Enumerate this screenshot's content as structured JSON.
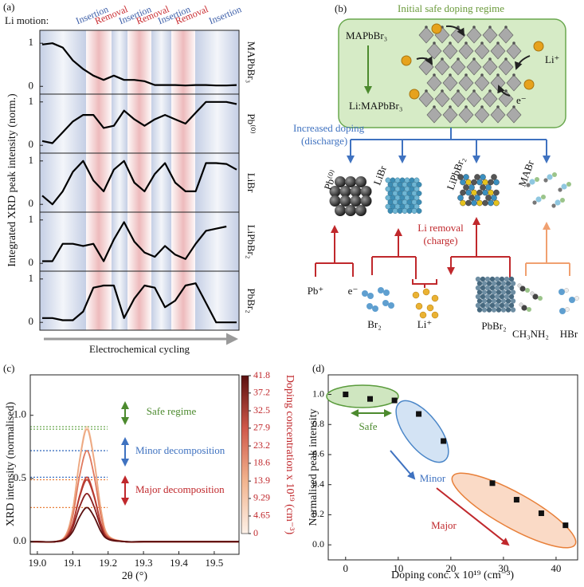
{
  "chart_data": [
    {
      "type": "line",
      "panel_label": "(a)",
      "top_label": "Li motion:",
      "ylabel": "Integrated XRD peak intensity (norm.)",
      "xlabel": "Electrochemical cycling",
      "color": "#000000",
      "phases": [
        {
          "label": "Insertion",
          "color": "#3c5ea8"
        },
        {
          "label": "Removal",
          "color": "#c8282d"
        },
        {
          "label": "Insertion",
          "color": "#3c5ea8"
        },
        {
          "label": "Removal",
          "color": "#c8282d"
        },
        {
          "label": "Insertion",
          "color": "#3c5ea8"
        },
        {
          "label": "Removal",
          "color": "#c8282d"
        },
        {
          "label": "Insertion",
          "color": "#3c5ea8"
        }
      ],
      "subplots": [
        {
          "name": "MAPbBr₃",
          "ylim": [
            -0.18,
            1.3
          ],
          "yticks": [
            0,
            1
          ],
          "values": [
            0.97,
            1.0,
            0.9,
            0.6,
            0.4,
            0.25,
            0.15,
            0.25,
            0.15,
            0.15,
            0.12,
            0.03,
            0.03,
            0.03,
            0.02,
            0.03,
            0.03,
            0.02,
            0.02,
            0.03
          ]
        },
        {
          "name": "Pb⁽⁰⁾",
          "ylim": [
            -0.18,
            1.18
          ],
          "yticks": [
            0,
            1
          ],
          "values": [
            0.1,
            0.05,
            0.3,
            0.55,
            0.7,
            0.7,
            0.4,
            0.45,
            0.8,
            0.6,
            0.45,
            0.6,
            0.7,
            0.6,
            0.5,
            0.75,
            1.0,
            1.0,
            1.0,
            0.95
          ]
        },
        {
          "name": "LiBr",
          "ylim": [
            -0.18,
            1.18
          ],
          "yticks": [
            0,
            1
          ],
          "values": [
            0.2,
            0.0,
            0.3,
            0.75,
            1.0,
            0.55,
            0.3,
            0.8,
            1.0,
            0.5,
            0.3,
            0.7,
            0.95,
            0.5,
            0.3,
            0.3,
            0.95,
            0.95,
            0.93,
            0.8
          ]
        },
        {
          "name": "LiPbBr₂",
          "ylim": [
            -0.18,
            1.18
          ],
          "yticks": [
            0,
            1
          ],
          "values": [
            0.05,
            0.05,
            0.45,
            0.45,
            0.4,
            0.45,
            0.05,
            0.55,
            0.95,
            0.5,
            0.25,
            0.15,
            0.4,
            0.2,
            0.1,
            0.45,
            0.75,
            0.8,
            0.85,
            null
          ]
        },
        {
          "name": "PbBr₂",
          "ylim": [
            -0.18,
            1.18
          ],
          "yticks": [
            0,
            1
          ],
          "values": [
            0.1,
            0.1,
            0.05,
            0.05,
            0.25,
            0.8,
            0.85,
            0.85,
            0.1,
            0.55,
            0.85,
            0.8,
            0.35,
            0.5,
            0.85,
            0.9,
            0.45,
            0.0,
            0.0,
            0.0
          ]
        }
      ]
    },
    {
      "type": "line",
      "panel_label": "(c)",
      "ylabel": "XRD intensity (normalised)",
      "xlabel": "2θ (°)",
      "xlim": [
        18.98,
        19.57
      ],
      "ylim": [
        -0.1,
        1.32
      ],
      "xticks": [
        {
          "value": 19,
          "label": "19.0"
        },
        19.1,
        19.2,
        19.3,
        19.4,
        19.5
      ],
      "yticks": [
        {
          "value": 0,
          "label": "0.0"
        },
        0.5,
        {
          "value": 1,
          "label": "1.0"
        }
      ],
      "x": [
        18.98,
        19.0,
        19.05,
        19.08,
        19.1,
        19.12,
        19.14,
        19.16,
        19.18,
        19.2,
        19.25,
        19.3,
        19.4,
        19.57
      ],
      "series": [
        {
          "color": "#f7cfb0",
          "values": [
            0,
            0,
            0,
            0.05,
            0.25,
            0.66,
            0.91,
            0.66,
            0.25,
            0.05,
            0,
            0,
            0,
            0
          ]
        },
        {
          "color": "#eda882",
          "values": [
            0,
            0,
            0,
            0.05,
            0.25,
            0.65,
            0.89,
            0.65,
            0.25,
            0.05,
            0,
            0,
            0,
            0
          ]
        },
        {
          "color": "#e07a5f",
          "values": [
            0,
            0,
            0,
            0.04,
            0.2,
            0.53,
            0.72,
            0.53,
            0.2,
            0.04,
            0,
            0,
            0,
            0
          ]
        },
        {
          "color": "#cc4a3c",
          "values": [
            0,
            0,
            0,
            0.03,
            0.14,
            0.37,
            0.51,
            0.37,
            0.14,
            0.03,
            0,
            0,
            0,
            0
          ]
        },
        {
          "color": "#b33a30",
          "values": [
            0,
            0,
            0,
            0.03,
            0.14,
            0.36,
            0.49,
            0.36,
            0.14,
            0.03,
            0,
            0,
            0,
            0
          ]
        },
        {
          "color": "#8a2020",
          "values": [
            0,
            0,
            0,
            0.02,
            0.11,
            0.28,
            0.38,
            0.28,
            0.11,
            0.02,
            0,
            0,
            0,
            0
          ]
        },
        {
          "color": "#5a1010",
          "values": [
            0,
            0,
            0,
            0.02,
            0.08,
            0.2,
            0.27,
            0.2,
            0.08,
            0.02,
            0,
            0,
            0,
            0
          ]
        }
      ],
      "hlines": [
        {
          "value": 0.91,
          "color": "#6aa84f"
        },
        {
          "value": 0.89,
          "color": "#6aa84f"
        },
        {
          "value": 0.72,
          "color": "#3f72c0"
        },
        {
          "value": 0.51,
          "color": "#3f72c0"
        },
        {
          "value": 0.49,
          "color": "#e8803a"
        },
        {
          "value": 0.27,
          "color": "#e8803a"
        }
      ],
      "annotations": [
        {
          "text": "Safe regime",
          "color": "#4c8a2e"
        },
        {
          "text": "Minor decomposition",
          "color": "#3f72c0"
        },
        {
          "text": "Major decomposition",
          "color": "#c0282c"
        }
      ],
      "colorbar": {
        "label": "Doping concentration x 10¹⁹ (cm⁻³)",
        "label_color": "#c0282c",
        "lim": [
          0,
          41.8
        ],
        "ticks": [
          0,
          4.65,
          9.29,
          13.9,
          18.6,
          23.2,
          27.9,
          32.5,
          37.2,
          41.8
        ],
        "colors": [
          "#fdf1e8",
          "#f2b48e",
          "#d0584a",
          "#5a0f0f"
        ]
      }
    },
    {
      "type": "scatter",
      "panel_label": "(d)",
      "ylabel": "Normalised peak intensity",
      "xlabel": "Doping conc. x 10¹⁹ (cm⁻³)",
      "xlim": [
        -3.3,
        44.1
      ],
      "ylim": [
        -0.1,
        1.13
      ],
      "xticks": [
        0,
        10,
        20,
        30,
        40
      ],
      "yticks": [
        {
          "value": 0,
          "label": "0.0"
        },
        0.2,
        0.4,
        0.6,
        0.8,
        {
          "value": 1,
          "label": "1.0"
        }
      ],
      "x": [
        0,
        4.65,
        9.29,
        13.9,
        18.6,
        27.9,
        32.5,
        37.2,
        41.8
      ],
      "values": [
        1.0,
        0.97,
        0.96,
        0.87,
        0.69,
        0.41,
        0.3,
        0.21,
        0.13
      ],
      "color": "#111111",
      "annotations": [
        {
          "text": "Safe",
          "color": "#4c8a2e"
        },
        {
          "text": "Minor",
          "color": "#3f72c0"
        },
        {
          "text": "Major",
          "color": "#c0282c"
        }
      ]
    }
  ],
  "diagram": {
    "panel_label": "(b)",
    "title": "Initial safe doping regime",
    "host": "MAPbBr₃",
    "doped": "Li:MAPbBr₃",
    "li_ion": "Li⁺",
    "electron": "e⁻",
    "discharge_label": [
      "Increased doping",
      "(discharge)"
    ],
    "products": [
      "Pb⁽⁰⁾",
      "LiBr",
      "LiPbBr₂",
      "MABr"
    ],
    "charge_label": [
      "Li removal",
      "(charge)"
    ],
    "decomposition": [
      "Pb⁺",
      "e⁻",
      "Br₂",
      "Li⁺",
      "PbBr₂",
      "CH₃NH₂",
      "HBr"
    ]
  }
}
